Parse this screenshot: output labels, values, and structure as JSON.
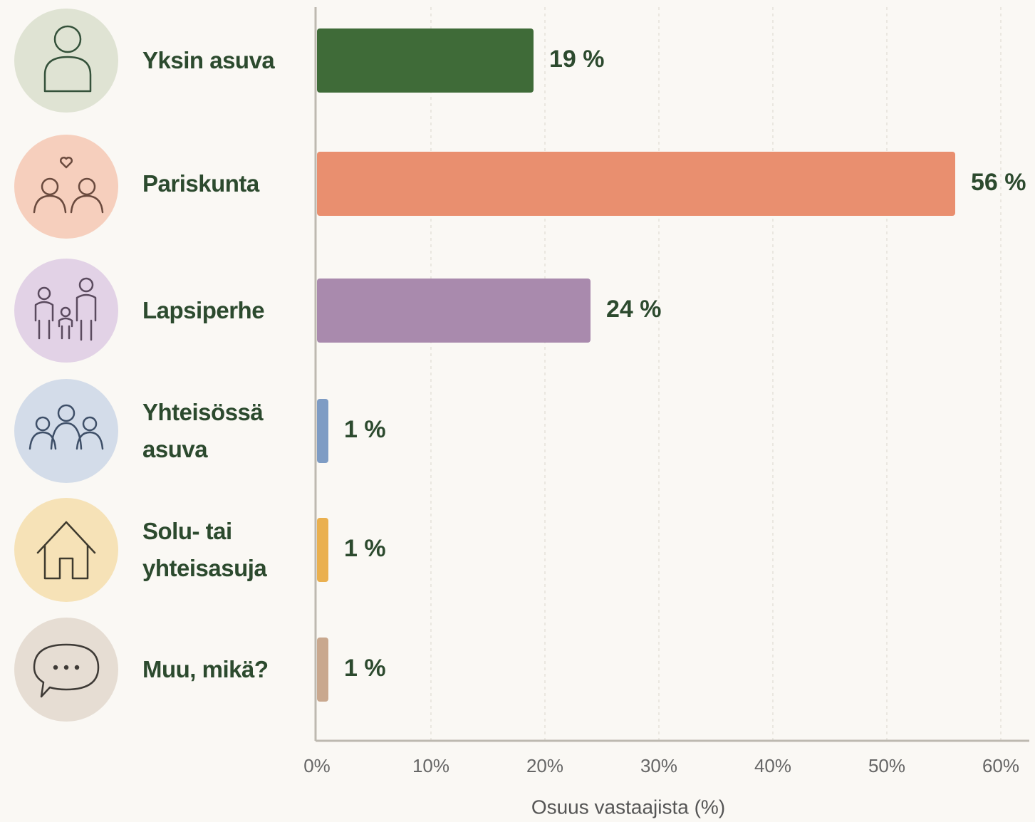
{
  "chart_data": {
    "type": "bar",
    "orientation": "horizontal",
    "categories": [
      "Yksin asuva",
      "Pariskunta",
      "Lapsiperhe",
      "Yhteisössä asuva",
      "Solu- tai yhteisasuja",
      "Muu, mikä?"
    ],
    "values": [
      19,
      56,
      24,
      1,
      1,
      1
    ],
    "value_labels": [
      "19 %",
      "56 %",
      "24 %",
      "1 %",
      "1 %",
      "1 %"
    ],
    "colors": [
      "#3f6b38",
      "#e98f6f",
      "#a98aad",
      "#7e9cc4",
      "#eab04f",
      "#c9a88e"
    ],
    "xlim": [
      0,
      60
    ],
    "xticks": [
      {
        "value": 0,
        "label": "0%"
      },
      {
        "value": 10,
        "label": "10%"
      },
      {
        "value": 20,
        "label": "20%"
      },
      {
        "value": 30,
        "label": "30%"
      },
      {
        "value": 40,
        "label": "40%"
      },
      {
        "value": 50,
        "label": "50%"
      },
      {
        "value": 60,
        "label": "60%"
      }
    ],
    "xlabel": "Osuus vastaajista (%)",
    "grid": true
  }
}
